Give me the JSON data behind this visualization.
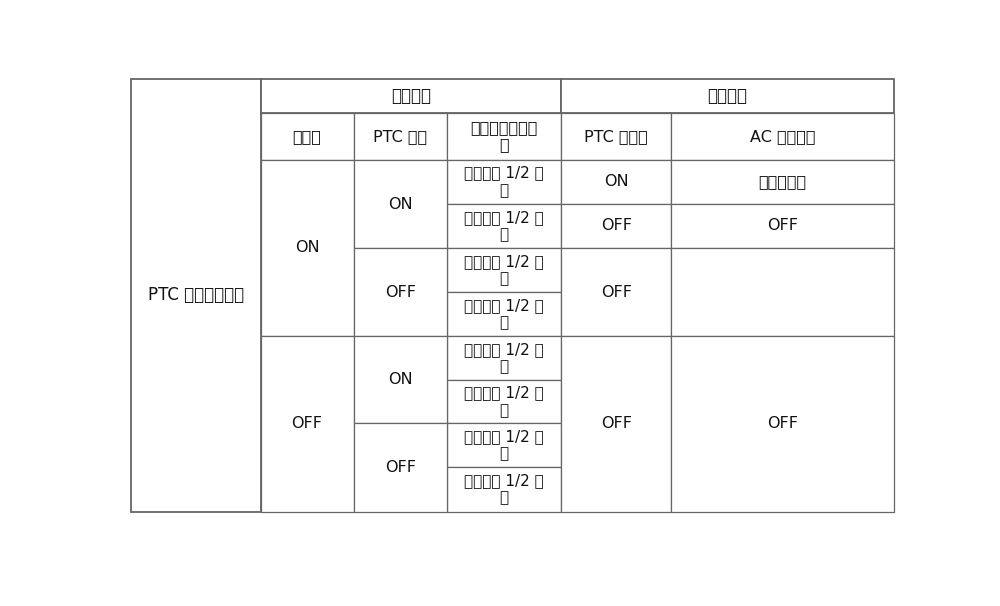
{
  "title_left": "PTC 输出控制逻辑",
  "header_group1": "条件设置",
  "header_group2": "输出结果",
  "col_h0": "鼓风机",
  "col_h1": "PTC 按键",
  "col_h2": "温度风门旋鈕位\n置",
  "col_h3": "PTC 指示灯",
  "col_h4": "AC 信号输出",
  "cell_right_1_1": "处于右边 1/2 范\n围",
  "cell_right_1_2": "处于左边 1/2 范\n围",
  "cell_out_high": "输出高电平",
  "bg_color": "#ffffff",
  "line_color": "#666666",
  "text_color": "#111111",
  "font_size": 11.5
}
